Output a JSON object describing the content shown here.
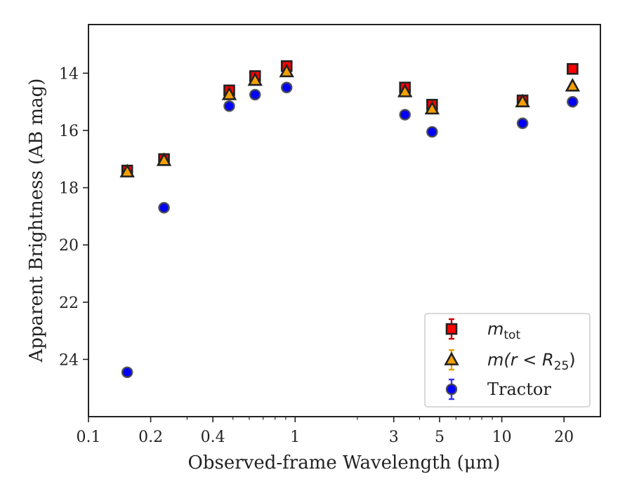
{
  "chart_data": {
    "type": "scatter",
    "xlabel": "Observed-frame Wavelength (μm)",
    "ylabel": "Apparent Brightness (AB mag)",
    "x_scale": "log",
    "y_inverted": true,
    "xlim": [
      0.1,
      30
    ],
    "ylim": [
      26.0,
      12.3
    ],
    "x_ticks": [
      0.1,
      0.2,
      0.4,
      1,
      3,
      5,
      10,
      20
    ],
    "x_tick_labels": [
      "0.1",
      "0.2",
      "0.4",
      "1",
      "3",
      "5",
      "10",
      "20"
    ],
    "y_ticks": [
      14,
      16,
      18,
      20,
      22,
      24
    ],
    "y_tick_labels": [
      "14",
      "16",
      "18",
      "20",
      "22",
      "24"
    ],
    "grid": false,
    "legend_position": "lower-right",
    "series": [
      {
        "name": "m_tot",
        "legend_text": "m",
        "legend_sub": "tot",
        "marker": "square",
        "color": "#ff0000",
        "edge_color": "#222222",
        "errorbar_color": "#cc0000",
        "points": [
          {
            "x": 0.154,
            "y": 17.4
          },
          {
            "x": 0.232,
            "y": 17.0
          },
          {
            "x": 0.48,
            "y": 14.6
          },
          {
            "x": 0.64,
            "y": 14.1
          },
          {
            "x": 0.91,
            "y": 13.75
          },
          {
            "x": 3.4,
            "y": 14.5
          },
          {
            "x": 4.6,
            "y": 15.1
          },
          {
            "x": 12.6,
            "y": 14.95
          },
          {
            "x": 22.0,
            "y": 13.85
          }
        ]
      },
      {
        "name": "m(r<R_25)",
        "legend_text": "m(r < R",
        "legend_sub": "25",
        "legend_close": ")",
        "marker": "triangle",
        "color": "#f5a000",
        "edge_color": "#222222",
        "errorbar_color": "#e6a100",
        "points": [
          {
            "x": 0.154,
            "y": 17.45
          },
          {
            "x": 0.232,
            "y": 17.05
          },
          {
            "x": 0.48,
            "y": 14.75
          },
          {
            "x": 0.64,
            "y": 14.25
          },
          {
            "x": 0.91,
            "y": 13.95
          },
          {
            "x": 3.4,
            "y": 14.65
          },
          {
            "x": 4.6,
            "y": 15.25
          },
          {
            "x": 12.6,
            "y": 15.0
          },
          {
            "x": 22.0,
            "y": 14.45
          }
        ]
      },
      {
        "name": "Tractor",
        "legend_text": "Tractor",
        "marker": "circle",
        "color": "#0000ff",
        "edge_color": "#444444",
        "errorbar_color": "#3333ff",
        "points": [
          {
            "x": 0.154,
            "y": 24.45
          },
          {
            "x": 0.232,
            "y": 18.7
          },
          {
            "x": 0.48,
            "y": 15.15
          },
          {
            "x": 0.64,
            "y": 14.75
          },
          {
            "x": 0.91,
            "y": 14.5
          },
          {
            "x": 3.4,
            "y": 15.45
          },
          {
            "x": 4.6,
            "y": 16.05
          },
          {
            "x": 12.6,
            "y": 15.75
          },
          {
            "x": 22.0,
            "y": 15.0
          }
        ]
      }
    ]
  }
}
